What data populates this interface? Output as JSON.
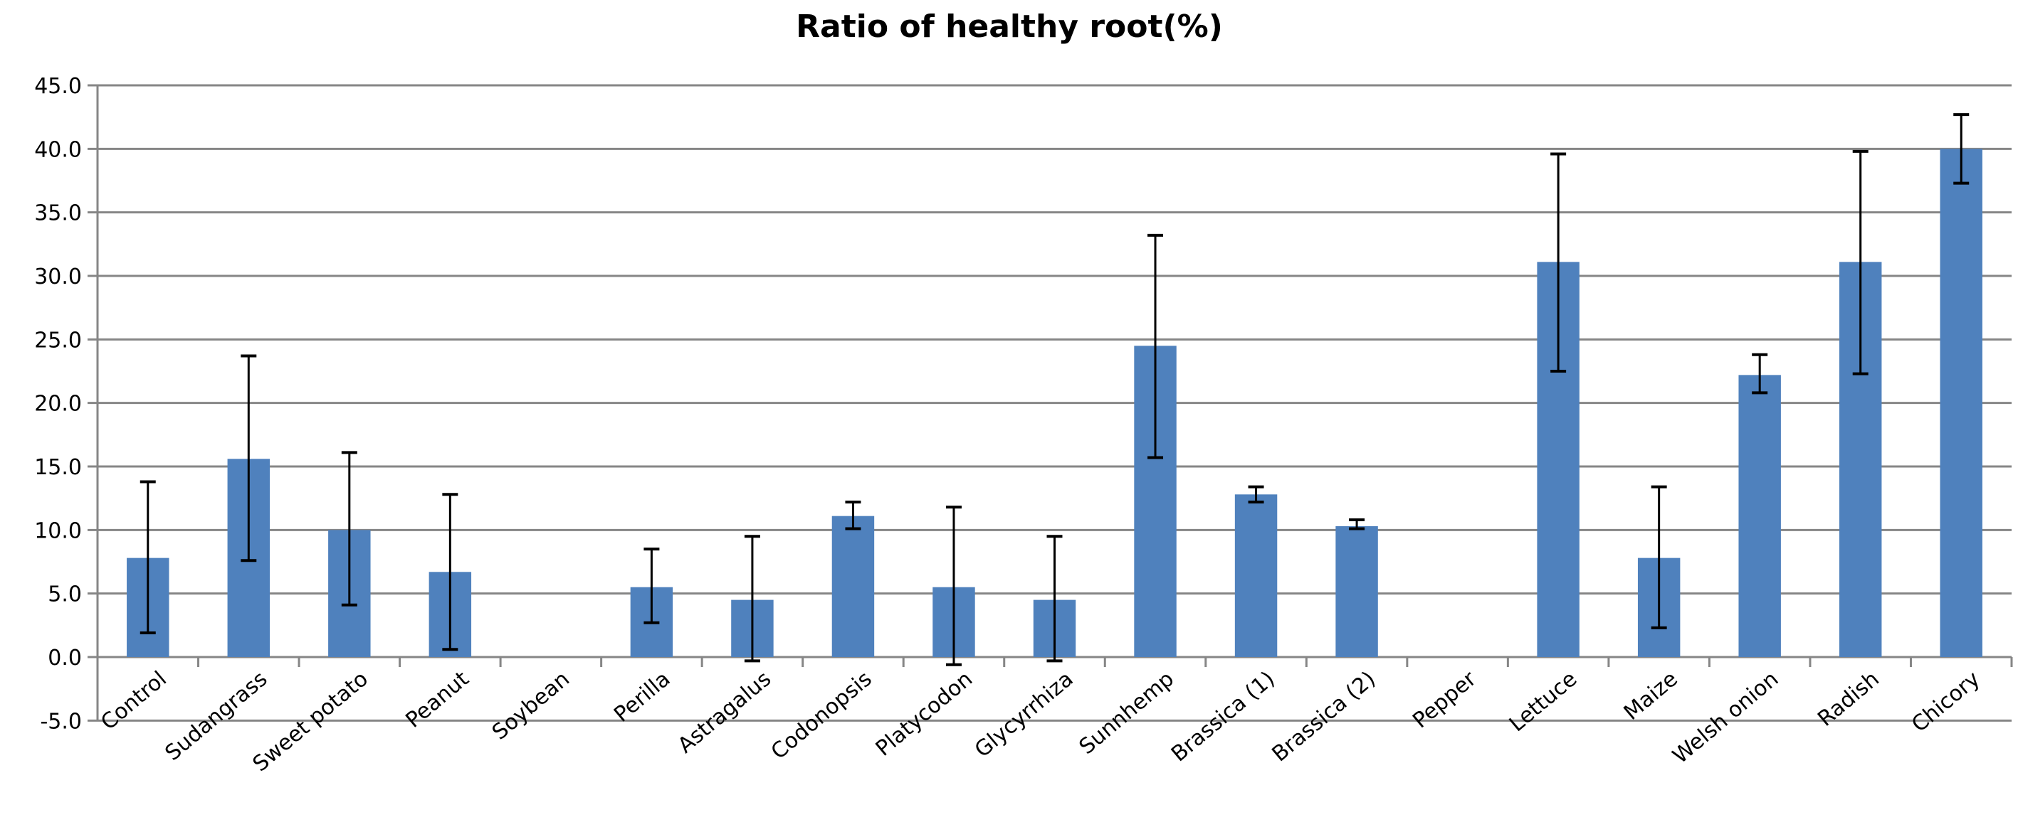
{
  "chart_data": {
    "type": "bar",
    "title": "Ratio of healthy root(%)",
    "xlabel": "",
    "ylabel": "",
    "ylim": [
      -5,
      45
    ],
    "yticks": [
      "-5.0",
      "0.0",
      "5.0",
      "10.0",
      "15.0",
      "20.0",
      "25.0",
      "30.0",
      "35.0",
      "40.0",
      "45.0"
    ],
    "grid": true,
    "legend": "none",
    "bar_color": "#4F81BD",
    "categories": [
      "Control",
      "Sudangrass",
      "Sweet potato",
      "Peanut",
      "Soybean",
      "Perilla",
      "Astragalus",
      "Codonopsis",
      "Platycodon",
      "Glycyrrhiza",
      "Sunnhemp",
      "Brassica (1)",
      "Brassica (2)",
      "Pepper",
      "Lettuce",
      "Maize",
      "Welsh onion",
      "Radish",
      "Chicory"
    ],
    "values": [
      7.8,
      15.6,
      10.0,
      6.7,
      0,
      5.5,
      4.5,
      11.1,
      5.5,
      4.5,
      24.5,
      12.8,
      10.3,
      0,
      31.1,
      7.8,
      22.2,
      31.1,
      40.0
    ],
    "error_upper": [
      13.8,
      23.7,
      16.1,
      12.8,
      null,
      8.5,
      9.5,
      12.2,
      11.8,
      9.5,
      33.2,
      13.4,
      10.8,
      null,
      39.6,
      13.4,
      23.8,
      39.8,
      42.7
    ],
    "error_lower": [
      1.9,
      7.6,
      4.1,
      0.6,
      null,
      2.7,
      -0.3,
      10.1,
      -0.6,
      -0.3,
      15.7,
      12.2,
      10.1,
      null,
      22.5,
      2.3,
      20.8,
      22.3,
      37.3
    ]
  }
}
